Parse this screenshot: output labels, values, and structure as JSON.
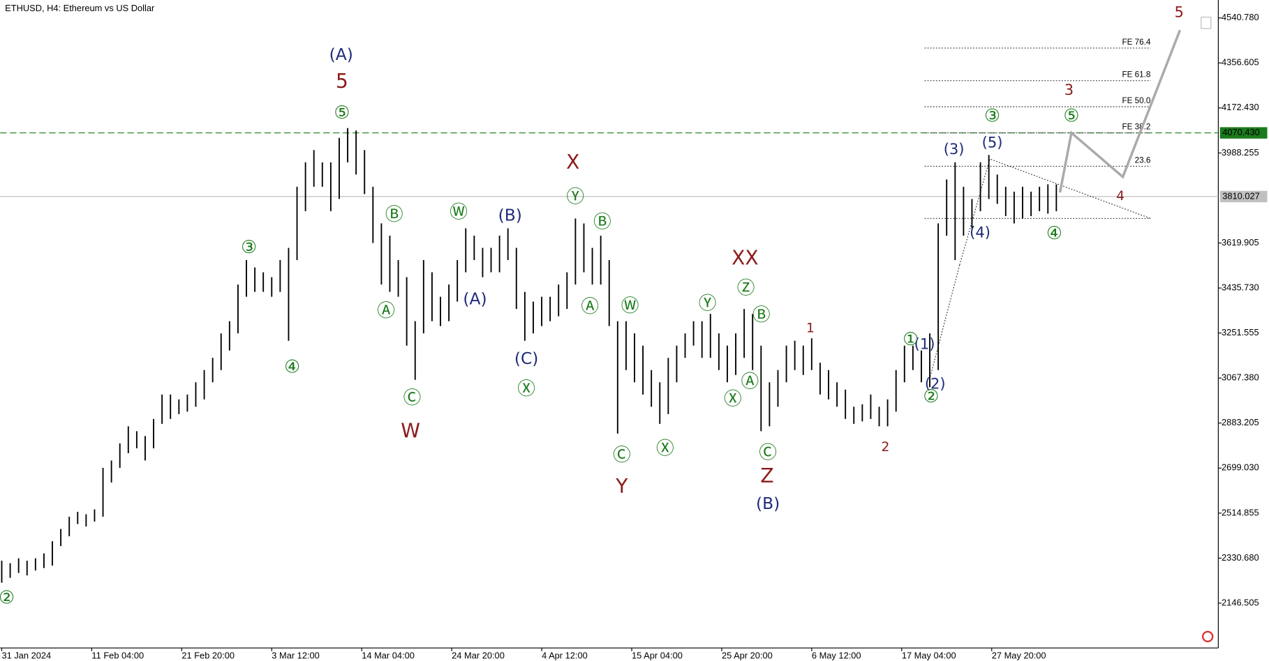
{
  "chart_data": {
    "type": "ohlc",
    "title": "ETHUSD, H4:  Ethereum vs US Dollar",
    "color": "#000000",
    "ylim": [
      1963.1,
      4614.1
    ],
    "yticks": [
      {
        "value": 4540.78,
        "label": "4540.780"
      },
      4356.605,
      {
        "value": 4172.43,
        "label": "4172.430"
      },
      3988.255,
      3619.905,
      {
        "value": 3435.73,
        "label": "3435.730"
      },
      3251.555,
      {
        "value": 3067.38,
        "label": "3067.380"
      },
      2883.205,
      {
        "value": 2699.03,
        "label": "2699.030"
      },
      2514.855,
      {
        "value": 2330.68,
        "label": "2330.680"
      },
      2146.505
    ],
    "x_tick_labels": [
      "31 Jan 2024",
      "11 Feb 04:00",
      "21 Feb 20:00",
      "3 Mar 12:00",
      "14 Mar 04:00",
      "24 Mar 20:00",
      "4 Apr 12:00",
      "15 Apr 04:00",
      "25 Apr 20:00",
      "6 May 12:00",
      "17 May 04:00",
      "27 May 20:00"
    ],
    "high": [
      2320,
      2310,
      2330,
      2320,
      2330,
      2350,
      2400,
      2450,
      2500,
      2520,
      2510,
      2530,
      2700,
      2730,
      2800,
      2870,
      2850,
      2830,
      2900,
      3000,
      3000,
      2980,
      3000,
      3050,
      3100,
      3150,
      3250,
      3300,
      3450,
      3550,
      3520,
      3500,
      3480,
      3550,
      3600,
      3850,
      3950,
      4000,
      3950,
      3950,
      4050,
      4090,
      4080,
      4000,
      3850,
      3700,
      3650,
      3550,
      3480,
      3300,
      3550,
      3500,
      3400,
      3450,
      3550,
      3680,
      3650,
      3600,
      3600,
      3650,
      3680,
      3600,
      3420,
      3380,
      3400,
      3400,
      3450,
      3500,
      3720,
      3700,
      3600,
      3650,
      3550,
      3300,
      3300,
      3250,
      3200,
      3100,
      3050,
      3150,
      3200,
      3250,
      3300,
      3300,
      3330,
      3250,
      3200,
      3250,
      3350,
      3330,
      3200,
      3050,
      3100,
      3200,
      3220,
      3200,
      3230,
      3130,
      3100,
      3050,
      3020,
      2950,
      2960,
      3000,
      2950,
      2980,
      3100,
      3200,
      3200,
      3180,
      3250,
      3700,
      3880,
      3950,
      3850,
      3800,
      3950,
      3980,
      3900,
      3850,
      3830,
      3850,
      3830,
      3850,
      3860,
      3860
    ],
    "low": [
      2230,
      2250,
      2270,
      2260,
      2280,
      2290,
      2300,
      2380,
      2420,
      2470,
      2460,
      2480,
      2500,
      2640,
      2700,
      2760,
      2780,
      2730,
      2780,
      2880,
      2900,
      2920,
      2930,
      2950,
      2980,
      3050,
      3100,
      3180,
      3250,
      3400,
      3420,
      3420,
      3400,
      3420,
      3220,
      3550,
      3750,
      3850,
      3850,
      3750,
      3800,
      3950,
      3900,
      3820,
      3620,
      3450,
      3420,
      3400,
      3200,
      3060,
      3250,
      3300,
      3280,
      3300,
      3380,
      3500,
      3550,
      3480,
      3500,
      3500,
      3550,
      3350,
      3220,
      3250,
      3280,
      3300,
      3320,
      3350,
      3450,
      3500,
      3450,
      3450,
      3280,
      2840,
      3100,
      3050,
      3000,
      2950,
      2880,
      2920,
      3050,
      3150,
      3200,
      3150,
      3150,
      3100,
      3050,
      3080,
      3150,
      3100,
      2850,
      2870,
      2950,
      3050,
      3100,
      3080,
      3100,
      3000,
      2980,
      2950,
      2900,
      2880,
      2890,
      2900,
      2870,
      2870,
      2930,
      3050,
      3100,
      3050,
      3030,
      3100,
      3650,
      3550,
      3650,
      3680,
      3750,
      3800,
      3780,
      3730,
      3700,
      3720,
      3730,
      3750,
      3740,
      3750
    ],
    "levels": [
      {
        "value": 4070.43,
        "label": "4070.430",
        "color": "#1b7a1b",
        "style": "dashed"
      },
      {
        "value": 3810.027,
        "label": "3810.027",
        "color": "#c0c0c0",
        "style": "solid"
      }
    ],
    "fib_labels": [
      "FE 76.4",
      "FE 61.8",
      "FE 50.0",
      "FE 38.2",
      "23.6"
    ],
    "wave_labels": [
      {
        "color": "#8b1a1a",
        "labels": [
          "5",
          "W",
          "X",
          "Y",
          "XX",
          "Z",
          "1",
          "2",
          "3",
          "4",
          "5"
        ]
      },
      {
        "color": "#1f2a7a",
        "labels": [
          "(A)",
          "(B)",
          "(A)",
          "(C)",
          "(B)",
          "(1)",
          "(2)",
          "(3)",
          "(5)",
          "(4)"
        ]
      },
      {
        "color": "#1b7a1b",
        "labels": [
          "⑤",
          "③",
          "④",
          "Ⓑ",
          "Ⓐ",
          "Ⓒ",
          "Ⓦ",
          "Ⓧ",
          "Ⓨ",
          "Ⓑ",
          "Ⓐ",
          "Ⓦ",
          "Ⓒ",
          "Ⓧ",
          "Ⓨ",
          "Ⓩ",
          "Ⓑ",
          "Ⓐ",
          "Ⓧ",
          "Ⓒ",
          "①",
          "②",
          "③",
          "⑤",
          "④",
          "②"
        ]
      }
    ]
  }
}
